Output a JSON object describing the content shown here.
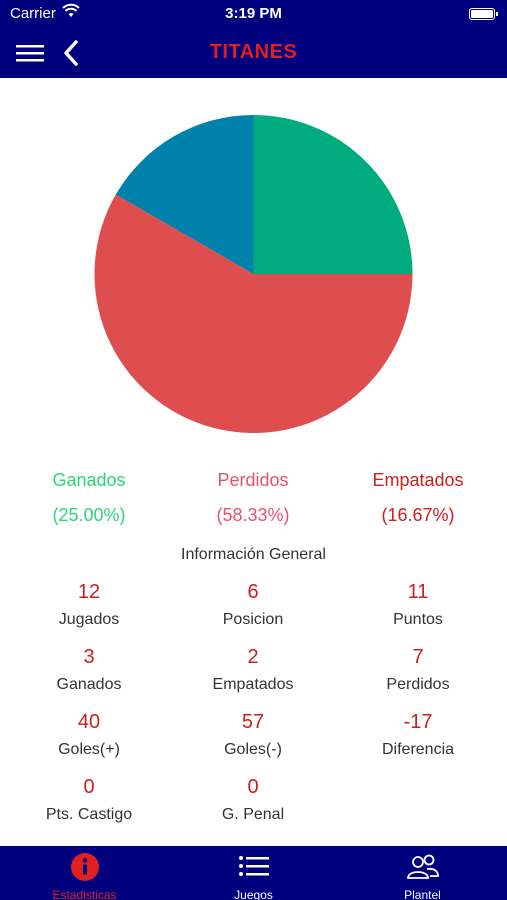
{
  "status_bar": {
    "carrier": "Carrier",
    "time": "3:19 PM"
  },
  "nav": {
    "title": "TITANES"
  },
  "colors": {
    "nav_bg": "#00007f",
    "ganados": "#00ab7e",
    "perdidos": "#df4e4e",
    "empatados": "#0081ab",
    "accent_red": "#cc1f1f"
  },
  "chart_data": {
    "type": "pie",
    "slices": [
      {
        "name": "Ganados",
        "value": 25.0,
        "color": "#00ab7e"
      },
      {
        "name": "Perdidos",
        "value": 58.33,
        "color": "#df4e4e"
      },
      {
        "name": "Empatados",
        "value": 16.67,
        "color": "#0081ab"
      }
    ]
  },
  "legend": [
    {
      "label": "Ganados",
      "pct": "(25.00%)",
      "color": "#2ed47a"
    },
    {
      "label": "Perdidos",
      "pct": "(58.33%)",
      "color": "#e8506f"
    },
    {
      "label": "Empatados",
      "pct": "(16.67%)",
      "color": "#cc1f1f"
    }
  ],
  "section_title": "Información General",
  "stats": [
    {
      "value": "12",
      "label": "Jugados"
    },
    {
      "value": "6",
      "label": "Posicion"
    },
    {
      "value": "11",
      "label": "Puntos"
    },
    {
      "value": "3",
      "label": "Ganados"
    },
    {
      "value": "2",
      "label": "Empatados"
    },
    {
      "value": "7",
      "label": "Perdidos"
    },
    {
      "value": "40",
      "label": "Goles(+)"
    },
    {
      "value": "57",
      "label": "Goles(-)"
    },
    {
      "value": "-17",
      "label": "Diferencia"
    },
    {
      "value": "0",
      "label": "Pts. Castigo"
    },
    {
      "value": "0",
      "label": "G. Penal"
    }
  ],
  "tabs": [
    {
      "label": "Estadisticas",
      "icon": "info-icon",
      "active": true
    },
    {
      "label": "Juegos",
      "icon": "list-icon",
      "active": false
    },
    {
      "label": "Plantel",
      "icon": "people-icon",
      "active": false
    }
  ]
}
